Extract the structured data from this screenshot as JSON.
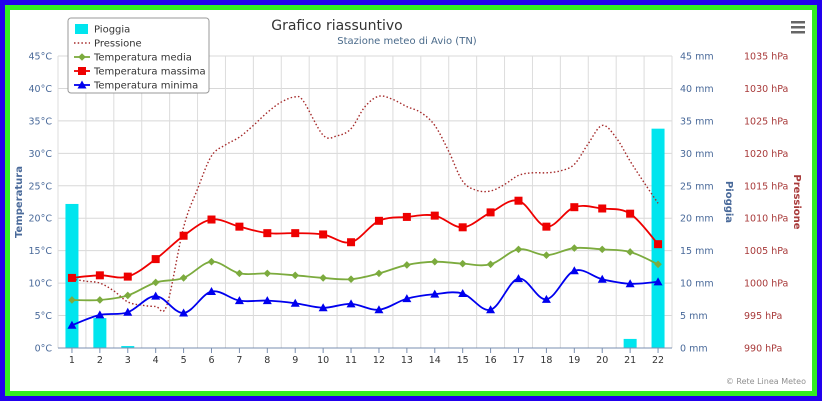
{
  "chart_data": {
    "type": "line",
    "title": "Grafico riassuntivo",
    "subtitle": "Stazione meteo di Avio (TN)",
    "credits": "© Rete Linea Meteo",
    "categories": [
      "1",
      "2",
      "3",
      "4",
      "5",
      "6",
      "7",
      "8",
      "9",
      "10",
      "11",
      "12",
      "13",
      "14",
      "15",
      "16",
      "17",
      "18",
      "19",
      "20",
      "21",
      "22"
    ],
    "axes": {
      "temperature": {
        "label": "Temperatura",
        "min": 0,
        "max": 45,
        "ticks": [
          "0°C",
          "5°C",
          "10°C",
          "15°C",
          "20°C",
          "25°C",
          "30°C",
          "35°C",
          "40°C",
          "45°C"
        ]
      },
      "rain": {
        "label": "Pioggia",
        "min": 0,
        "max": 45,
        "ticks": [
          "0 mm",
          "5 mm",
          "10 mm",
          "15 mm",
          "20 mm",
          "25 mm",
          "30 mm",
          "35 mm",
          "40 mm",
          "45 mm"
        ]
      },
      "pressure": {
        "label": "Pressione",
        "min": 990,
        "max": 1035,
        "ticks": [
          "990 hPa",
          "995 hPa",
          "1000 hPa",
          "1005 hPa",
          "1010 hPa",
          "1015 hPa",
          "1020 hPa",
          "1025 hPa",
          "1030 hPa",
          "1035 hPa"
        ]
      }
    },
    "grid": true,
    "legend_position": "top-left",
    "series": [
      {
        "name": "Pioggia",
        "type": "bar",
        "axis": "rain",
        "color": "#00e5ee",
        "values": [
          22.2,
          4.6,
          0.3,
          0,
          0,
          0,
          0,
          0,
          0,
          0,
          0,
          0,
          0,
          0,
          0,
          0,
          0,
          0,
          0,
          0,
          1.4,
          33.8
        ]
      },
      {
        "name": "Pressione",
        "type": "line",
        "axis": "pressure",
        "color": "#a52a2a",
        "dash": "dotted",
        "points": [
          [
            1,
            1000.6
          ],
          [
            1.5,
            1000.3
          ],
          [
            2,
            1000.0
          ],
          [
            2.5,
            998.8
          ],
          [
            3,
            997.1
          ],
          [
            3.5,
            996.6
          ],
          [
            4,
            996.4
          ],
          [
            4.4,
            996.6
          ],
          [
            5,
            1008.6
          ],
          [
            5.5,
            1014.5
          ],
          [
            6,
            1019.6
          ],
          [
            6.5,
            1021.3
          ],
          [
            7,
            1022.5
          ],
          [
            7.5,
            1024.3
          ],
          [
            8,
            1026.3
          ],
          [
            8.5,
            1027.9
          ],
          [
            9,
            1028.7
          ],
          [
            9.3,
            1028.0
          ],
          [
            10,
            1022.8
          ],
          [
            10.5,
            1022.7
          ],
          [
            11,
            1023.8
          ],
          [
            11.5,
            1027.2
          ],
          [
            12,
            1028.8
          ],
          [
            12.5,
            1028.3
          ],
          [
            13,
            1027.2
          ],
          [
            13.5,
            1026.3
          ],
          [
            14,
            1024.3
          ],
          [
            14.5,
            1020.3
          ],
          [
            15,
            1015.7
          ],
          [
            15.5,
            1014.3
          ],
          [
            16,
            1014.2
          ],
          [
            16.5,
            1015.2
          ],
          [
            17,
            1016.6
          ],
          [
            17.5,
            1017.0
          ],
          [
            18,
            1017.0
          ],
          [
            18.5,
            1017.3
          ],
          [
            19,
            1018.3
          ],
          [
            19.5,
            1021.5
          ],
          [
            20,
            1024.3
          ],
          [
            20.5,
            1022.4
          ],
          [
            21,
            1018.8
          ],
          [
            21.5,
            1015.5
          ],
          [
            22,
            1012.3
          ]
        ]
      },
      {
        "name": "Temperatura media",
        "type": "line",
        "axis": "temperature",
        "color": "#7cab3e",
        "values": [
          7.4,
          7.4,
          8.1,
          10.1,
          10.8,
          13.3,
          11.5,
          11.5,
          11.2,
          10.8,
          10.6,
          11.5,
          12.8,
          13.3,
          13.0,
          12.9,
          15.2,
          14.3,
          15.4,
          15.2,
          14.8,
          12.9
        ]
      },
      {
        "name": "Temperatura massima",
        "type": "line",
        "axis": "temperature",
        "color": "#ee0000",
        "values": [
          10.8,
          11.2,
          11.0,
          13.7,
          17.3,
          19.8,
          18.7,
          17.7,
          17.7,
          17.5,
          16.3,
          19.6,
          20.2,
          20.4,
          18.6,
          20.9,
          22.7,
          18.7,
          21.7,
          21.5,
          20.7,
          16.0
        ]
      },
      {
        "name": "Temperatura minima",
        "type": "line",
        "axis": "temperature",
        "color": "#0000ee",
        "values": [
          3.5,
          5.1,
          5.5,
          8.0,
          5.4,
          8.7,
          7.3,
          7.3,
          6.9,
          6.2,
          6.8,
          5.9,
          7.6,
          8.3,
          8.4,
          5.9,
          10.7,
          7.5,
          11.9,
          10.6,
          9.9,
          10.2
        ]
      }
    ]
  },
  "ui": {
    "menu_icon": "hamburger-menu-icon"
  }
}
